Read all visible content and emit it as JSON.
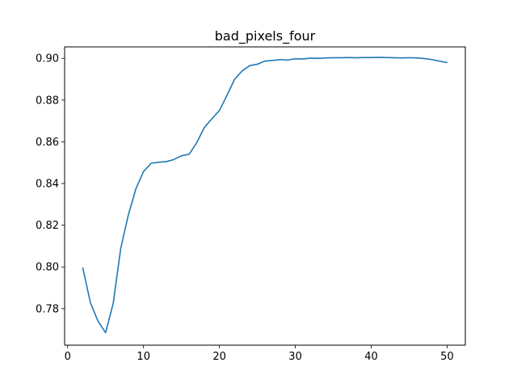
{
  "chart_data": {
    "type": "line",
    "title": "bad_pixels_four",
    "xlabel": "",
    "ylabel": "",
    "xlim": [
      -0.4,
      52.4
    ],
    "ylim": [
      0.7625,
      0.9055
    ],
    "xticks": [
      0,
      10,
      20,
      30,
      40,
      50
    ],
    "xtick_labels": [
      "0",
      "10",
      "20",
      "30",
      "40",
      "50"
    ],
    "yticks": [
      0.78,
      0.8,
      0.82,
      0.84,
      0.86,
      0.88,
      0.9
    ],
    "ytick_labels": [
      "0.78",
      "0.80",
      "0.82",
      "0.84",
      "0.86",
      "0.88",
      "0.90"
    ],
    "grid": false,
    "series": [
      {
        "color": "#1f77b4",
        "x": [
          2,
          3,
          4,
          5,
          6,
          7,
          8,
          9,
          10,
          11,
          12,
          13,
          14,
          15,
          16,
          17,
          18,
          19,
          20,
          21,
          22,
          23,
          24,
          25,
          26,
          27,
          28,
          29,
          30,
          31,
          32,
          33,
          34,
          35,
          36,
          37,
          38,
          39,
          40,
          41,
          42,
          43,
          44,
          45,
          46,
          47,
          48,
          49,
          50
        ],
        "y": [
          0.7995,
          0.7828,
          0.774,
          0.7685,
          0.7825,
          0.809,
          0.825,
          0.8375,
          0.8458,
          0.8497,
          0.8502,
          0.8505,
          0.8515,
          0.8533,
          0.854,
          0.8595,
          0.8668,
          0.871,
          0.875,
          0.8823,
          0.89,
          0.894,
          0.8965,
          0.8972,
          0.8987,
          0.899,
          0.8994,
          0.8992,
          0.8998,
          0.8997,
          0.9001,
          0.9,
          0.9002,
          0.9003,
          0.9003,
          0.9004,
          0.9003,
          0.9004,
          0.9004,
          0.9005,
          0.9004,
          0.9003,
          0.9002,
          0.9003,
          0.9002,
          0.8999,
          0.8994,
          0.8987,
          0.898
        ]
      }
    ]
  }
}
